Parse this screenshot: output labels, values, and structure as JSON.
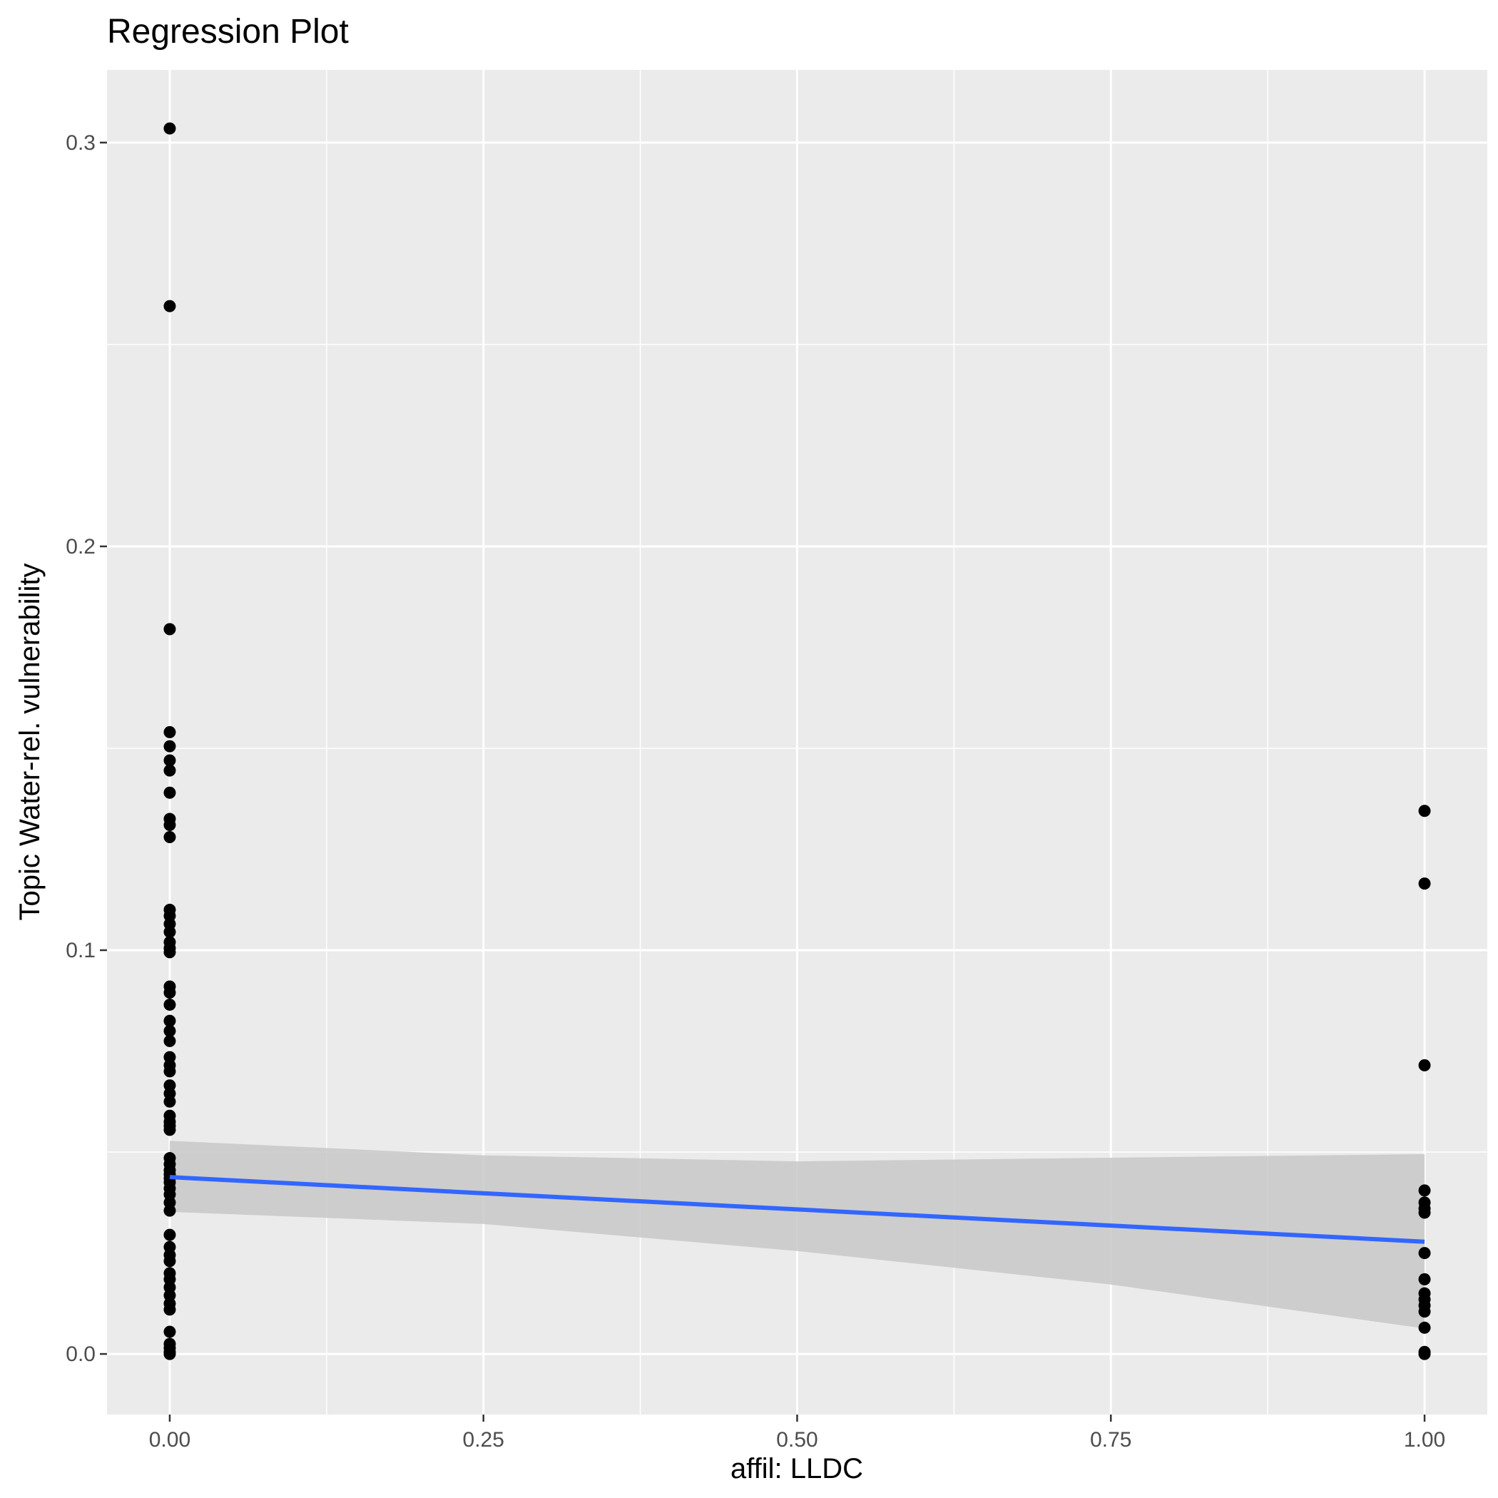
{
  "chart_data": {
    "type": "scatter",
    "title": "Regression Plot",
    "xlabel": "affil: LLDC",
    "ylabel": "Topic Water-rel. vulnerability",
    "xlim": [
      -0.05,
      1.05
    ],
    "ylim": [
      -0.015,
      0.318
    ],
    "x_ticks": [
      0.0,
      0.25,
      0.5,
      0.75,
      1.0
    ],
    "x_tick_labels": [
      "0.00",
      "0.25",
      "0.50",
      "0.75",
      "1.00"
    ],
    "y_ticks": [
      0.0,
      0.1,
      0.2,
      0.3
    ],
    "y_tick_labels": [
      "0.0",
      "0.1",
      "0.2",
      "0.3"
    ],
    "grid": true,
    "legend": "none",
    "colors": {
      "panel": "#ebebeb",
      "grid": "#ffffff",
      "points": "#000000",
      "line": "#3366ff",
      "band": "#c8c8c8"
    },
    "series": [
      {
        "type": "scatter",
        "points": [
          [
            0,
            0.3035
          ],
          [
            0,
            0.2595
          ],
          [
            0,
            0.1795
          ],
          [
            0,
            0.154
          ],
          [
            0,
            0.1505
          ],
          [
            0,
            0.147
          ],
          [
            0,
            0.1445
          ],
          [
            0,
            0.139
          ],
          [
            0,
            0.1325
          ],
          [
            0,
            0.131
          ],
          [
            0,
            0.128
          ],
          [
            0,
            0.11
          ],
          [
            0,
            0.1085
          ],
          [
            0,
            0.1065
          ],
          [
            0,
            0.1045
          ],
          [
            0,
            0.102
          ],
          [
            0,
            0.1005
          ],
          [
            0,
            0.0995
          ],
          [
            0,
            0.091
          ],
          [
            0,
            0.0895
          ],
          [
            0,
            0.0865
          ],
          [
            0,
            0.0825
          ],
          [
            0,
            0.08
          ],
          [
            0,
            0.0775
          ],
          [
            0,
            0.0735
          ],
          [
            0,
            0.0715
          ],
          [
            0,
            0.07
          ],
          [
            0,
            0.0665
          ],
          [
            0,
            0.0645
          ],
          [
            0,
            0.0625
          ],
          [
            0,
            0.059
          ],
          [
            0,
            0.0575
          ],
          [
            0,
            0.0565
          ],
          [
            0,
            0.0555
          ],
          [
            0,
            0.0485
          ],
          [
            0,
            0.047
          ],
          [
            0,
            0.0455
          ],
          [
            0,
            0.0445
          ],
          [
            0,
            0.0435
          ],
          [
            0,
            0.0425
          ],
          [
            0,
            0.041
          ],
          [
            0,
            0.0395
          ],
          [
            0,
            0.0375
          ],
          [
            0,
            0.0355
          ],
          [
            0,
            0.0295
          ],
          [
            0,
            0.0265
          ],
          [
            0,
            0.0245
          ],
          [
            0,
            0.023
          ],
          [
            0,
            0.02
          ],
          [
            0,
            0.0185
          ],
          [
            0,
            0.0165
          ],
          [
            0,
            0.0145
          ],
          [
            0,
            0.0125
          ],
          [
            0,
            0.011
          ],
          [
            0,
            0.0055
          ],
          [
            0,
            0.0025
          ],
          [
            0,
            0.0015
          ],
          [
            0,
            0.0005
          ],
          [
            0,
            0.0
          ],
          [
            1,
            0.1345
          ],
          [
            1,
            0.1165
          ],
          [
            1,
            0.0715
          ],
          [
            1,
            0.0405
          ],
          [
            1,
            0.0375
          ],
          [
            1,
            0.036
          ],
          [
            1,
            0.035
          ],
          [
            1,
            0.025
          ],
          [
            1,
            0.0185
          ],
          [
            1,
            0.015
          ],
          [
            1,
            0.0135
          ],
          [
            1,
            0.012
          ],
          [
            1,
            0.0105
          ],
          [
            1,
            0.0065
          ],
          [
            1,
            0.0005
          ],
          [
            1,
            0.0
          ]
        ]
      },
      {
        "type": "line",
        "name": "fit",
        "x": [
          0,
          1
        ],
        "y": [
          0.0438,
          0.0278
        ]
      },
      {
        "type": "band",
        "name": "confidence interval",
        "x": [
          0,
          0.25,
          0.5,
          0.75,
          1
        ],
        "lower": [
          0.0352,
          0.0322,
          0.0255,
          0.0172,
          0.0063
        ],
        "upper": [
          0.0528,
          0.0492,
          0.0477,
          0.0486,
          0.0495
        ]
      }
    ]
  }
}
